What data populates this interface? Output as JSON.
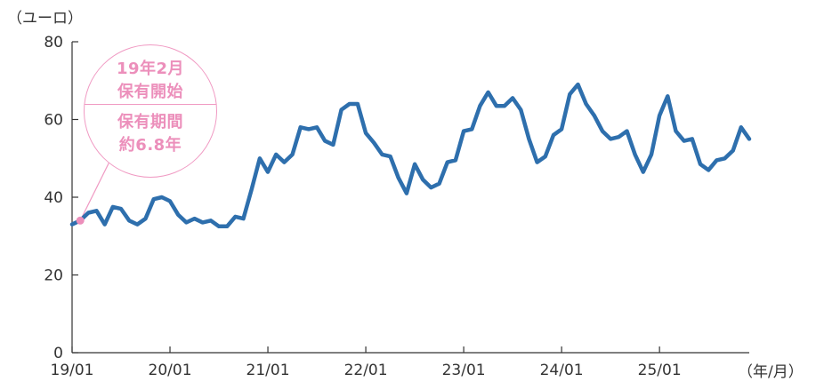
{
  "chart_data": {
    "type": "line",
    "title": "",
    "ylabel": "（ユーロ）",
    "xlabel": "（年/月）",
    "ylim": [
      0,
      80
    ],
    "yticks": [
      0,
      20,
      40,
      60,
      80
    ],
    "x_tick_labels": [
      "19/01",
      "20/01",
      "21/01",
      "22/01",
      "23/01",
      "24/01",
      "25/01"
    ],
    "x_start": "2019-01",
    "x_end": "2025-12",
    "grid": false,
    "series": [
      {
        "color": "#2e6fad",
        "x": [
          "2019-01",
          "2019-02",
          "2019-03",
          "2019-04",
          "2019-05",
          "2019-06",
          "2019-07",
          "2019-08",
          "2019-09",
          "2019-10",
          "2019-11",
          "2019-12",
          "2020-01",
          "2020-02",
          "2020-03",
          "2020-04",
          "2020-05",
          "2020-06",
          "2020-07",
          "2020-08",
          "2020-09",
          "2020-10",
          "2020-11",
          "2020-12",
          "2021-01",
          "2021-02",
          "2021-03",
          "2021-04",
          "2021-05",
          "2021-06",
          "2021-07",
          "2021-08",
          "2021-09",
          "2021-10",
          "2021-11",
          "2021-12",
          "2022-01",
          "2022-02",
          "2022-03",
          "2022-04",
          "2022-05",
          "2022-06",
          "2022-07",
          "2022-08",
          "2022-09",
          "2022-10",
          "2022-11",
          "2022-12",
          "2023-01",
          "2023-02",
          "2023-03",
          "2023-04",
          "2023-05",
          "2023-06",
          "2023-07",
          "2023-08",
          "2023-09",
          "2023-10",
          "2023-11",
          "2023-12",
          "2024-01",
          "2024-02",
          "2024-03",
          "2024-04",
          "2024-05",
          "2024-06",
          "2024-07",
          "2024-08",
          "2024-09",
          "2024-10",
          "2024-11",
          "2024-12",
          "2025-01",
          "2025-02",
          "2025-03",
          "2025-04",
          "2025-05",
          "2025-06",
          "2025-07",
          "2025-08",
          "2025-09",
          "2025-10",
          "2025-11",
          "2025-12"
        ],
        "values": [
          33,
          34,
          36,
          36.5,
          33,
          37.5,
          37,
          34,
          33,
          34.5,
          39.5,
          40,
          39,
          35.5,
          33.5,
          34.5,
          33.5,
          34,
          32.5,
          32.5,
          35,
          34.5,
          42,
          50,
          46.5,
          51,
          49,
          51,
          58,
          57.5,
          58,
          54.5,
          53.5,
          62.5,
          64,
          64,
          56.5,
          54,
          51,
          50.5,
          45,
          41,
          48.5,
          44.5,
          42.5,
          43.5,
          49,
          49.5,
          57,
          57.5,
          63.5,
          67,
          63.5,
          63.5,
          65.5,
          62.5,
          55,
          49,
          50.5,
          56,
          57.5,
          66.5,
          69,
          64,
          61,
          57,
          55,
          55.5,
          57,
          51,
          46.5,
          51,
          61,
          66,
          57,
          54.5,
          55,
          48.5,
          47,
          49.5,
          50,
          52,
          58,
          55
        ]
      }
    ],
    "highlight_point": {
      "x": "2019-02",
      "y": 34,
      "color": "#ec8fbb"
    },
    "annotation_lines": [
      "19年2月",
      "保有開始",
      "保有期間",
      "約6.8年"
    ]
  }
}
